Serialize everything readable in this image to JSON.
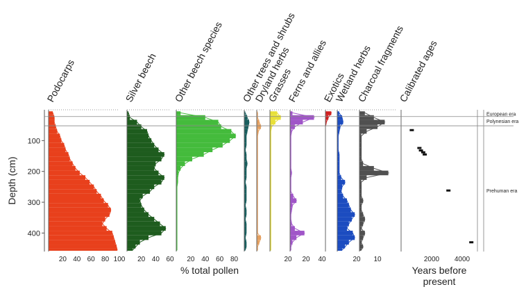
{
  "chart_data": {
    "type": "area",
    "ylabel": "Depth (cm)",
    "ylim": [
      0,
      460
    ],
    "y_ticks": [
      100,
      200,
      300,
      400
    ],
    "grid": false,
    "depth": [
      10,
      25,
      40,
      55,
      70,
      85,
      100,
      115,
      130,
      145,
      160,
      175,
      190,
      205,
      220,
      235,
      250,
      265,
      280,
      295,
      310,
      325,
      340,
      355,
      370,
      385,
      400,
      415,
      430,
      445,
      455
    ],
    "panels": [
      {
        "name": "Podocarps",
        "color": "#e8401c",
        "xlim": [
          0,
          100
        ],
        "x_ticks": [
          20,
          40,
          60,
          80,
          100
        ],
        "values": [
          6,
          8,
          8,
          10,
          12,
          16,
          18,
          22,
          24,
          28,
          30,
          34,
          38,
          44,
          52,
          58,
          64,
          68,
          74,
          78,
          84,
          88,
          86,
          80,
          76,
          82,
          90,
          92,
          94,
          96,
          97
        ]
      },
      {
        "name": "Silver beech",
        "color": "#1e5c1e",
        "xlim": [
          0,
          60
        ],
        "x_ticks": [
          20,
          40,
          60
        ],
        "values": [
          2,
          4,
          14,
          20,
          28,
          30,
          34,
          38,
          44,
          52,
          48,
          40,
          38,
          44,
          52,
          48,
          38,
          32,
          22,
          18,
          20,
          24,
          30,
          38,
          46,
          54,
          48,
          30,
          18,
          12,
          8
        ]
      },
      {
        "name": "Other beech species",
        "color": "#44bb3c",
        "xlim": [
          0,
          90
        ],
        "x_ticks": [
          20,
          40,
          60,
          80
        ],
        "values": [
          6,
          40,
          58,
          62,
          76,
          82,
          74,
          64,
          50,
          38,
          22,
          12,
          6,
          3,
          2,
          2,
          1,
          1,
          1,
          1,
          1,
          1,
          1,
          1,
          1,
          1,
          1,
          1,
          1,
          1,
          1
        ]
      },
      {
        "name": "Other trees and shrubs",
        "color": "#1a5e5e",
        "xlim": [
          0,
          10
        ],
        "x_ticks": [],
        "values": [
          1,
          3,
          5,
          4,
          3,
          2,
          2,
          2,
          1,
          2,
          2,
          3,
          2,
          2,
          2,
          1,
          2,
          2,
          2,
          2,
          1,
          2,
          2,
          1,
          2,
          2,
          2,
          1,
          2,
          2,
          1
        ]
      },
      {
        "name": "Dryland herbs",
        "color": "#e5a060",
        "xlim": [
          0,
          10
        ],
        "x_ticks": [],
        "values": [
          1,
          1,
          3,
          5,
          2,
          1,
          1,
          1,
          1,
          1,
          1,
          1,
          1,
          1,
          1,
          1,
          1,
          1,
          1,
          1,
          1,
          1,
          1,
          1,
          1,
          1,
          1,
          5,
          3,
          1,
          1
        ]
      },
      {
        "name": "Grasses",
        "color": "#e8e038",
        "xlim": [
          0,
          20
        ],
        "x_ticks": [
          20
        ],
        "values": [
          8,
          12,
          6,
          2,
          1,
          1,
          1,
          1,
          1,
          1,
          1,
          1,
          1,
          1,
          1,
          1,
          1,
          1,
          1,
          1,
          1,
          1,
          1,
          1,
          1,
          1,
          1,
          1,
          1,
          1,
          1
        ]
      },
      {
        "name": "Ferns and allies",
        "color": "#a055c8",
        "xlim": [
          0,
          40
        ],
        "x_ticks": [
          20,
          40
        ],
        "values": [
          3,
          30,
          16,
          6,
          2,
          1,
          1,
          1,
          1,
          1,
          1,
          1,
          1,
          2,
          1,
          1,
          1,
          1,
          4,
          8,
          3,
          2,
          1,
          1,
          2,
          6,
          18,
          8,
          3,
          1,
          1
        ]
      },
      {
        "name": "Exotics",
        "color": "#d02020",
        "xlim": [
          0,
          10
        ],
        "x_ticks": [],
        "values": [
          6,
          3,
          1,
          0,
          0,
          0,
          0,
          0,
          0,
          0,
          0,
          0,
          0,
          0,
          0,
          0,
          0,
          0,
          0,
          0,
          0,
          0,
          0,
          0,
          0,
          0,
          0,
          0,
          0,
          0,
          0
        ]
      },
      {
        "name": "Wetland herbs",
        "color": "#1c4cc0",
        "xlim": [
          0,
          20
        ],
        "x_ticks": [
          20
        ],
        "values": [
          2,
          5,
          6,
          3,
          2,
          1,
          1,
          1,
          1,
          2,
          2,
          2,
          2,
          2,
          4,
          8,
          5,
          4,
          6,
          10,
          12,
          14,
          18,
          15,
          12,
          10,
          16,
          18,
          12,
          8,
          5
        ]
      },
      {
        "name": "Charcoal fragments",
        "color": "#505050",
        "xlim": [
          0,
          20
        ],
        "x_ticks": [
          10
        ],
        "values": [
          3,
          8,
          14,
          10,
          4,
          1,
          1,
          1,
          1,
          1,
          1,
          2,
          8,
          16,
          4,
          1,
          1,
          1,
          1,
          2,
          1,
          1,
          2,
          3,
          2,
          1,
          3,
          2,
          1,
          2,
          1
        ]
      }
    ],
    "panel_xlabel": "% total pollen",
    "ages": {
      "name": "Calibrated ages",
      "xlabel": "Years before present",
      "xlim": [
        0,
        5000
      ],
      "x_ticks": [
        2000,
        4000
      ],
      "points": [
        {
          "age": 700,
          "depth": 66
        },
        {
          "age": 1200,
          "depth": 124
        },
        {
          "age": 1300,
          "depth": 132
        },
        {
          "age": 1450,
          "depth": 138
        },
        {
          "age": 1550,
          "depth": 145
        },
        {
          "age": 3100,
          "depth": 262
        },
        {
          "age": 4600,
          "depth": 430
        }
      ]
    },
    "zones": {
      "boundaries": [
        22,
        52
      ],
      "labels": [
        {
          "text": "European era",
          "depth": 12
        },
        {
          "text": "Polynesian era",
          "depth": 36
        },
        {
          "text": "Prehuman era",
          "depth": 262
        }
      ]
    }
  }
}
